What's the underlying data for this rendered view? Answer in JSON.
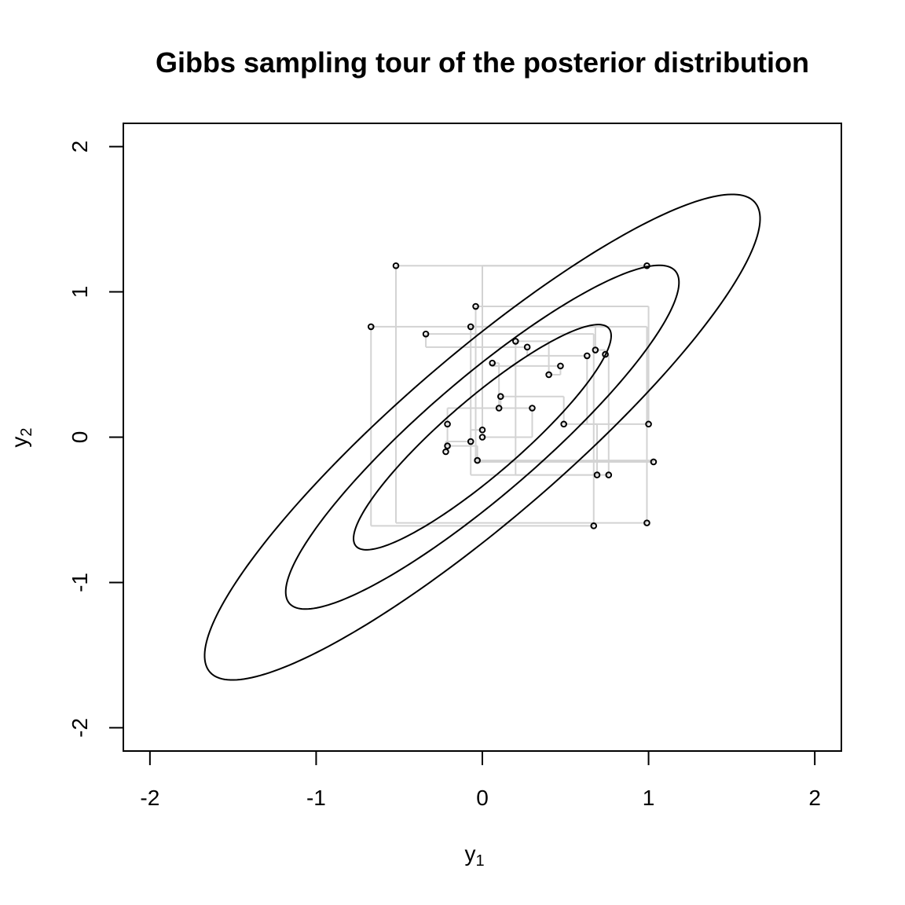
{
  "chart_data": {
    "type": "scatter",
    "title": "Gibbs sampling tour of the posterior distribution",
    "xlabel": {
      "base": "y",
      "sub": "1"
    },
    "ylabel": {
      "base": "y",
      "sub": "2"
    },
    "xlim": [
      -2.16,
      2.16
    ],
    "ylim": [
      -2.16,
      2.16
    ],
    "xticks": [
      -2,
      -1,
      0,
      1,
      2
    ],
    "yticks": [
      -2,
      -1,
      0,
      1,
      2
    ],
    "xtick_labels": [
      "-2",
      "-1",
      "0",
      "1",
      "2"
    ],
    "ytick_labels": [
      "-2",
      "-1",
      "0",
      "1",
      "2"
    ],
    "grid": false,
    "contours": {
      "correlation": 0.9,
      "radii": [
        0.775,
        1.183,
        1.671
      ],
      "color": "#000000"
    },
    "path_color": "#d3d3d3",
    "point_color": "#000000",
    "samples": [
      {
        "x": 0.0,
        "y": 0.0
      },
      {
        "x": 0.3,
        "y": 0.2
      },
      {
        "x": 0.11,
        "y": 0.28
      },
      {
        "x": 0.49,
        "y": 0.09
      },
      {
        "x": 0.69,
        "y": -0.26
      },
      {
        "x": -0.07,
        "y": 0.76
      },
      {
        "x": 0.68,
        "y": 0.6
      },
      {
        "x": 0.74,
        "y": 0.57
      },
      {
        "x": 0.76,
        "y": -0.26
      },
      {
        "x": 0.2,
        "y": 0.66
      },
      {
        "x": 0.4,
        "y": 0.43
      },
      {
        "x": 0.47,
        "y": 0.49
      },
      {
        "x": 0.06,
        "y": 0.51
      },
      {
        "x": 0.1,
        "y": 0.2
      },
      {
        "x": -0.21,
        "y": 0.09
      },
      {
        "x": -0.21,
        "y": -0.06
      },
      {
        "x": -0.03,
        "y": -0.16
      },
      {
        "x": 1.03,
        "y": -0.17
      },
      {
        "x": -0.04,
        "y": 0.9
      },
      {
        "x": 1.0,
        "y": 0.09
      },
      {
        "x": 0.63,
        "y": 0.56
      },
      {
        "x": 0.27,
        "y": 0.62
      },
      {
        "x": -0.34,
        "y": 0.71
      },
      {
        "x": 0.67,
        "y": -0.61
      },
      {
        "x": -0.67,
        "y": 0.76
      },
      {
        "x": 0.99,
        "y": -0.59
      },
      {
        "x": -0.52,
        "y": 1.18
      },
      {
        "x": 0.99,
        "y": 1.18
      },
      {
        "x": 0.0,
        "y": 0.05
      },
      {
        "x": -0.07,
        "y": -0.03
      },
      {
        "x": -0.22,
        "y": -0.1
      }
    ]
  }
}
